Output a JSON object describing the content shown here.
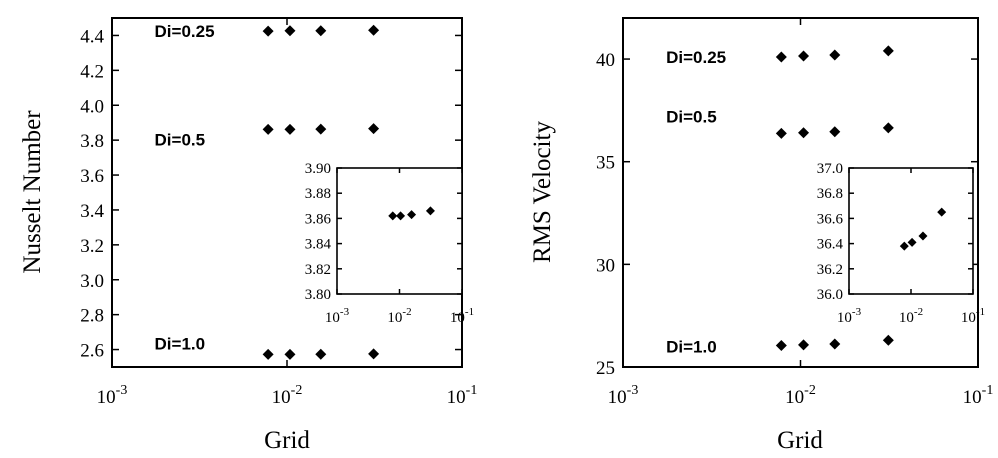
{
  "chart_data": [
    {
      "type": "scatter",
      "title": "",
      "xlabel": "Grid",
      "ylabel": "Nusselt Number",
      "xscale": "log",
      "xlim": [
        0.001,
        0.1
      ],
      "ylim": [
        2.5,
        4.5
      ],
      "xticks": [
        0.001,
        0.01,
        0.1
      ],
      "xtick_labels": [
        {
          "base": "10",
          "exp": "-3"
        },
        {
          "base": "10",
          "exp": "-2"
        },
        {
          "base": "10",
          "exp": "-1"
        }
      ],
      "yticks": [
        2.6,
        2.8,
        3.0,
        3.2,
        3.4,
        3.6,
        3.8,
        4.0,
        4.2,
        4.4
      ],
      "ytick_labels": [
        "2.6",
        "2.8",
        "3.0",
        "3.2",
        "3.4",
        "3.6",
        "3.8",
        "4.0",
        "4.2",
        "4.4"
      ],
      "grid": false,
      "legend": "none",
      "marker": "diamond",
      "series": [
        {
          "x": [
            0.0078,
            0.0104,
            0.0156,
            0.03125
          ],
          "y": [
            4.425,
            4.427,
            4.427,
            4.43
          ]
        },
        {
          "x": [
            0.0078,
            0.0104,
            0.0156,
            0.03125
          ],
          "y": [
            3.862,
            3.862,
            3.863,
            3.866
          ]
        },
        {
          "x": [
            0.0078,
            0.0104,
            0.0156,
            0.03125
          ],
          "y": [
            2.572,
            2.572,
            2.573,
            2.575
          ]
        }
      ],
      "annotations": [
        {
          "text": "Di=0.25",
          "x": 0.00175,
          "y": 4.39
        },
        {
          "text": "Di=0.5",
          "x": 0.00175,
          "y": 3.77
        },
        {
          "text": "Di=1.0",
          "x": 0.00175,
          "y": 2.6
        }
      ],
      "inset": {
        "xscale": "log",
        "xlim": [
          0.001,
          0.1
        ],
        "ylim": [
          3.8,
          3.9
        ],
        "xticks": [
          0.001,
          0.01,
          0.1
        ],
        "xtick_labels": [
          {
            "base": "10",
            "exp": "-3"
          },
          {
            "base": "10",
            "exp": "-2"
          },
          {
            "base": "10",
            "exp": "-1"
          }
        ],
        "yticks": [
          3.8,
          3.82,
          3.84,
          3.86,
          3.88,
          3.9
        ],
        "ytick_labels": [
          "3.80",
          "3.82",
          "3.84",
          "3.86",
          "3.88",
          "3.90"
        ],
        "series": [
          {
            "x": [
              0.0078,
              0.0104,
              0.0156,
              0.03125
            ],
            "y": [
              3.862,
              3.862,
              3.863,
              3.866
            ]
          }
        ]
      }
    },
    {
      "type": "scatter",
      "title": "",
      "xlabel": "Grid",
      "ylabel": "RMS Velocity",
      "xscale": "log",
      "xlim": [
        0.001,
        0.1
      ],
      "ylim": [
        25,
        42
      ],
      "xticks": [
        0.001,
        0.01,
        0.1
      ],
      "xtick_labels": [
        {
          "base": "10",
          "exp": "-3"
        },
        {
          "base": "10",
          "exp": "-2"
        },
        {
          "base": "10",
          "exp": "-1"
        }
      ],
      "yticks": [
        25,
        30,
        35,
        40
      ],
      "ytick_labels": [
        "25",
        "30",
        "35",
        "40"
      ],
      "grid": false,
      "legend": "none",
      "marker": "diamond",
      "series": [
        {
          "x": [
            0.0078,
            0.0104,
            0.0156,
            0.03125
          ],
          "y": [
            40.1,
            40.15,
            40.2,
            40.4
          ]
        },
        {
          "x": [
            0.0078,
            0.0104,
            0.0156,
            0.03125
          ],
          "y": [
            36.38,
            36.41,
            36.46,
            36.65
          ]
        },
        {
          "x": [
            0.0078,
            0.0104,
            0.0156,
            0.03125
          ],
          "y": [
            26.05,
            26.08,
            26.12,
            26.3
          ]
        }
      ],
      "annotations": [
        {
          "text": "Di=0.25",
          "x": 0.00175,
          "y": 39.8
        },
        {
          "text": "Di=0.5",
          "x": 0.00175,
          "y": 36.9
        },
        {
          "text": "Di=1.0",
          "x": 0.00175,
          "y": 25.7
        }
      ],
      "inset": {
        "xscale": "log",
        "xlim": [
          0.001,
          0.1
        ],
        "ylim": [
          36.0,
          37.0
        ],
        "xticks": [
          0.001,
          0.01,
          0.1
        ],
        "xtick_labels": [
          {
            "base": "10",
            "exp": "-3"
          },
          {
            "base": "10",
            "exp": "-2"
          },
          {
            "base": "10",
            "exp": "-1"
          }
        ],
        "yticks": [
          36.0,
          36.2,
          36.4,
          36.6,
          36.8,
          37.0
        ],
        "ytick_labels": [
          "36.0",
          "36.2",
          "36.4",
          "36.6",
          "36.8",
          "37.0"
        ],
        "series": [
          {
            "x": [
              0.0078,
              0.0104,
              0.0156,
              0.03125
            ],
            "y": [
              36.38,
              36.41,
              36.46,
              36.65
            ]
          }
        ]
      }
    }
  ]
}
